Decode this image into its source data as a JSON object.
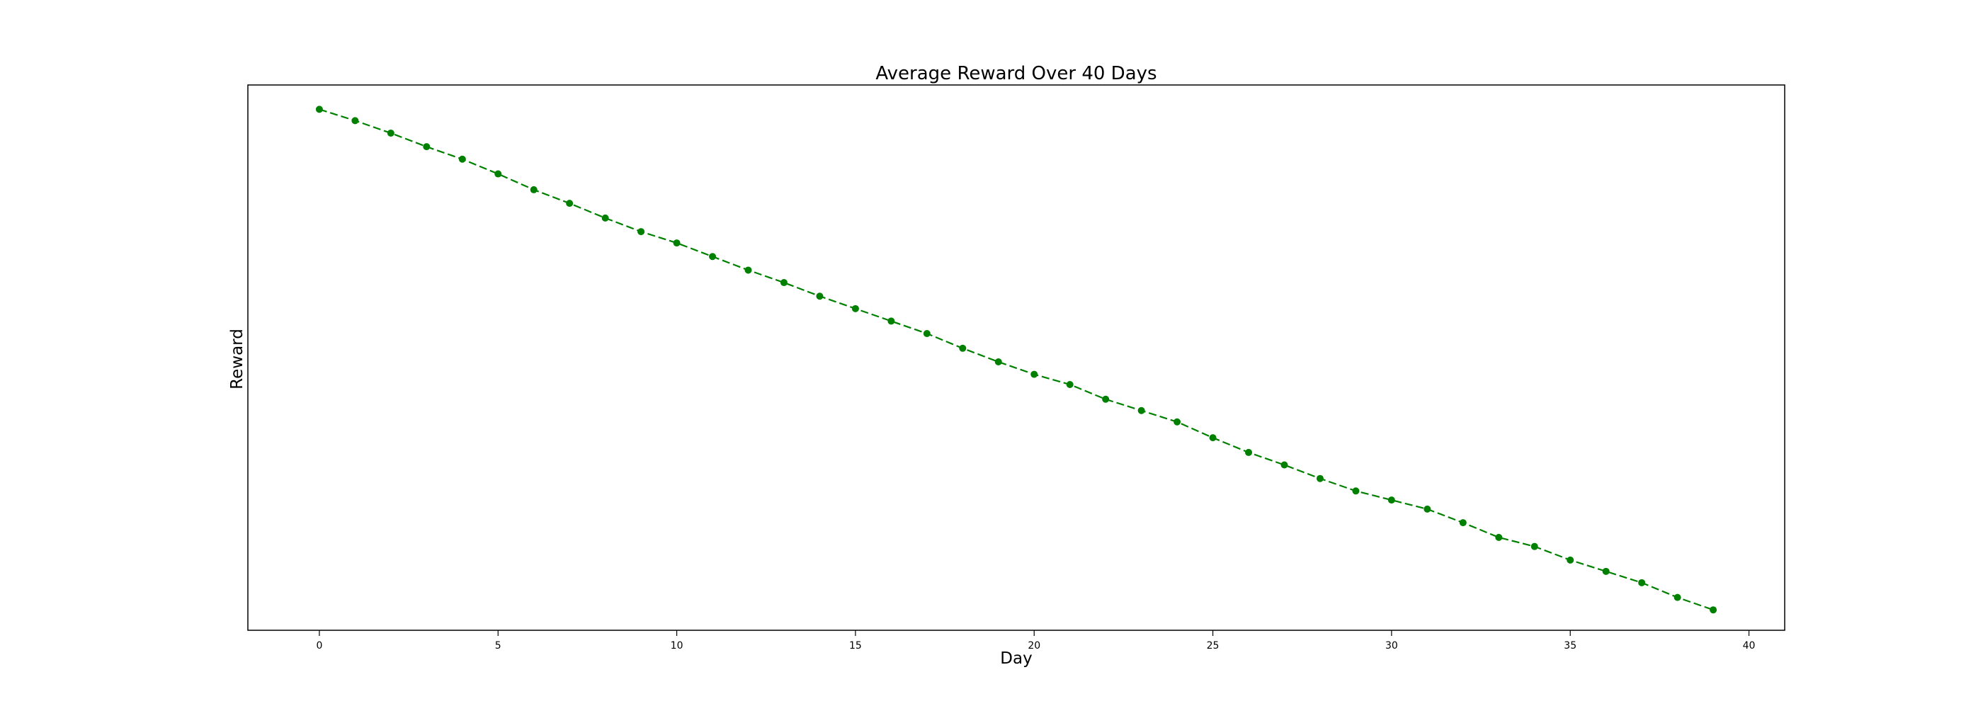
{
  "chart_data": {
    "type": "line",
    "title": "Average Reward Over 40 Days",
    "xlabel": "Day",
    "ylabel": "Reward",
    "xlim": [
      -2,
      41
    ],
    "ylim": [
      -1,
      47.15
    ],
    "x_ticks": [
      0,
      5,
      10,
      15,
      20,
      25,
      30,
      35,
      40
    ],
    "y_ticks_visible": false,
    "grid": false,
    "legend": "none",
    "series": [
      {
        "color": "#008000",
        "line_style": "dashed",
        "marker": "circle",
        "x": [
          0,
          1,
          2,
          3,
          4,
          5,
          6,
          7,
          8,
          9,
          10,
          11,
          12,
          13,
          14,
          15,
          16,
          17,
          18,
          19,
          20,
          21,
          22,
          23,
          24,
          25,
          26,
          27,
          28,
          29,
          30,
          31,
          32,
          33,
          34,
          35,
          36,
          37,
          38,
          39
        ],
        "values": [
          45,
          44,
          42.9,
          41.7,
          40.6,
          39.3,
          37.9,
          36.7,
          35.4,
          34.2,
          33.2,
          32,
          30.8,
          29.7,
          28.5,
          27.4,
          26.3,
          25.2,
          23.9,
          22.7,
          21.6,
          20.7,
          19.4,
          18.4,
          17.4,
          16,
          14.7,
          13.6,
          12.4,
          11.3,
          10.5,
          9.7,
          8.5,
          7.2,
          6.4,
          5.2,
          4.2,
          3.2,
          1.9,
          0.8
        ]
      }
    ]
  }
}
